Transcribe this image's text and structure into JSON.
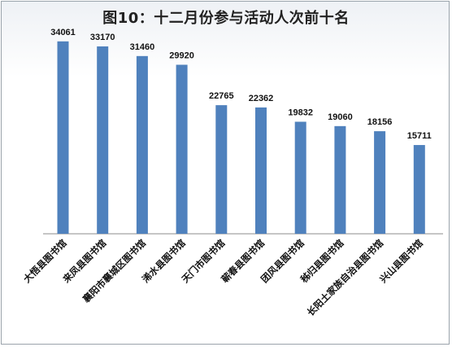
{
  "chart_data": {
    "type": "bar",
    "title": "图10：十二月份参与活动人次前十名",
    "categories": [
      "大悟县图书馆",
      "来凤县图书馆",
      "襄阳市襄城区图书馆",
      "浠水县图书馆",
      "天门市图书馆",
      "蕲春县图书馆",
      "团风县图书馆",
      "秭归县图书馆",
      "长阳土家族自治县图书馆",
      "兴山县图书馆"
    ],
    "values": [
      34061,
      33170,
      31460,
      29920,
      22765,
      22362,
      19832,
      19060,
      18156,
      15711
    ],
    "ylim": [
      0,
      40000
    ],
    "color": "#4f81bd",
    "grid": false,
    "legend": "none"
  }
}
